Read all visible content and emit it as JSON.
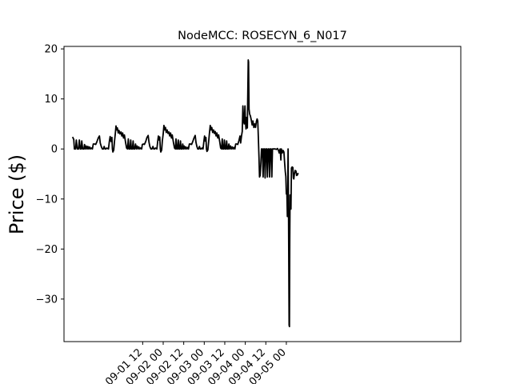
{
  "chart_data": {
    "type": "line",
    "title": "NodeMCC: ROSECYN_6_N017",
    "xlabel": "",
    "ylabel": "Price ($)",
    "xlim_hours": [
      -34,
      198
    ],
    "ylim": [
      -38.5,
      20.5
    ],
    "yticks": [
      20,
      10,
      0,
      -10,
      -20,
      -30
    ],
    "xticks": [
      {
        "hour": 12,
        "label": "09-01 12"
      },
      {
        "hour": 24,
        "label": "09-02 00"
      },
      {
        "hour": 36,
        "label": "09-02 12"
      },
      {
        "hour": 48,
        "label": "09-03 00"
      },
      {
        "hour": 60,
        "label": "09-03 12"
      },
      {
        "hour": 72,
        "label": "09-04 00"
      },
      {
        "hour": 84,
        "label": "09-04 12"
      },
      {
        "hour": 96,
        "label": "09-05 00"
      }
    ],
    "grid": false,
    "line_color": "#000000",
    "series": [
      {
        "name": "",
        "points": [
          [
            -29.0,
            2.4
          ],
          [
            -28.3,
            1.9
          ],
          [
            -27.9,
            0.0
          ],
          [
            -27.2,
            0.0
          ],
          [
            -26.8,
            1.8
          ],
          [
            -26.2,
            0.0
          ],
          [
            -25.5,
            0.0
          ],
          [
            -25.0,
            1.8
          ],
          [
            -24.5,
            0.0
          ],
          [
            -24.0,
            0.0
          ],
          [
            -23.6,
            1.6
          ],
          [
            -23.1,
            0.0
          ],
          [
            -22.4,
            0.0
          ],
          [
            -22.0,
            0.9
          ],
          [
            -21.5,
            0.0
          ],
          [
            -21.0,
            0.6
          ],
          [
            -20.5,
            0.0
          ],
          [
            -20.0,
            0.5
          ],
          [
            -19.5,
            0.0
          ],
          [
            -19.0,
            0.4
          ],
          [
            -18.5,
            0.0
          ],
          [
            -18.0,
            0.2
          ],
          [
            -17.4,
            0.0
          ],
          [
            -16.9,
            1.0
          ],
          [
            -16.0,
            1.0
          ],
          [
            -15.5,
            0.9
          ],
          [
            -14.8,
            1.4
          ],
          [
            -14.0,
            2.2
          ],
          [
            -13.3,
            2.6
          ],
          [
            -12.8,
            1.2
          ],
          [
            -12.2,
            0.5
          ],
          [
            -11.6,
            0.0
          ],
          [
            -11.0,
            0.0
          ],
          [
            -10.5,
            0.5
          ],
          [
            -10.0,
            0.0
          ],
          [
            -9.5,
            0.0
          ],
          [
            -9.0,
            0.2
          ],
          [
            -8.0,
            0.0
          ],
          [
            -7.5,
            1.5
          ],
          [
            -7.0,
            2.5
          ],
          [
            -6.5,
            1.5
          ],
          [
            -6.0,
            2.3
          ],
          [
            -5.7,
            0.0
          ],
          [
            -5.4,
            -0.6
          ],
          [
            -4.9,
            -0.2
          ],
          [
            -4.5,
            1.5
          ],
          [
            -4.0,
            3.0
          ],
          [
            -3.6,
            4.6
          ],
          [
            -3.1,
            3.8
          ],
          [
            -2.8,
            4.2
          ],
          [
            -2.3,
            3.2
          ],
          [
            -1.8,
            3.7
          ],
          [
            -1.3,
            3.0
          ],
          [
            -0.7,
            3.4
          ],
          [
            -0.2,
            2.6
          ],
          [
            0.3,
            3.2
          ],
          [
            0.8,
            2.2
          ],
          [
            1.3,
            2.8
          ],
          [
            2.0,
            1.3
          ],
          [
            2.6,
            0.2
          ],
          [
            3.1,
            0.0
          ],
          [
            3.6,
            2.0
          ],
          [
            4.0,
            0.0
          ],
          [
            4.6,
            0.0
          ],
          [
            5.0,
            1.8
          ],
          [
            5.4,
            0.0
          ],
          [
            6.0,
            0.0
          ],
          [
            6.4,
            1.6
          ],
          [
            6.8,
            0.0
          ],
          [
            7.3,
            0.0
          ],
          [
            7.8,
            1.0
          ],
          [
            8.3,
            0.0
          ],
          [
            8.8,
            0.6
          ],
          [
            9.3,
            0.0
          ],
          [
            9.8,
            0.4
          ],
          [
            10.3,
            0.0
          ],
          [
            10.8,
            0.2
          ],
          [
            11.4,
            0.0
          ],
          [
            11.8,
            0.9
          ],
          [
            12.5,
            1.0
          ],
          [
            13.0,
            0.9
          ],
          [
            13.8,
            1.5
          ],
          [
            14.5,
            2.3
          ],
          [
            15.2,
            2.7
          ],
          [
            15.7,
            1.3
          ],
          [
            16.2,
            0.5
          ],
          [
            16.8,
            0.0
          ],
          [
            17.4,
            0.0
          ],
          [
            18.0,
            0.5
          ],
          [
            18.5,
            0.0
          ],
          [
            19.0,
            0.0
          ],
          [
            19.5,
            0.2
          ],
          [
            20.3,
            0.0
          ],
          [
            20.8,
            1.6
          ],
          [
            21.2,
            2.6
          ],
          [
            21.6,
            1.8
          ],
          [
            22.0,
            2.4
          ],
          [
            22.3,
            0.0
          ],
          [
            22.6,
            -0.6
          ],
          [
            23.1,
            -0.2
          ],
          [
            23.5,
            1.6
          ],
          [
            24.0,
            3.0
          ],
          [
            24.4,
            4.7
          ],
          [
            24.9,
            3.8
          ],
          [
            25.3,
            4.3
          ],
          [
            25.8,
            3.3
          ],
          [
            26.3,
            3.8
          ],
          [
            26.8,
            3.1
          ],
          [
            27.3,
            3.4
          ],
          [
            27.8,
            2.6
          ],
          [
            28.3,
            3.2
          ],
          [
            28.8,
            2.2
          ],
          [
            29.3,
            2.8
          ],
          [
            30.0,
            1.3
          ],
          [
            30.6,
            0.2
          ],
          [
            31.1,
            0.0
          ],
          [
            31.5,
            2.0
          ],
          [
            31.9,
            0.0
          ],
          [
            32.4,
            0.0
          ],
          [
            32.8,
            1.8
          ],
          [
            33.2,
            0.0
          ],
          [
            33.7,
            0.0
          ],
          [
            34.1,
            1.6
          ],
          [
            34.5,
            0.0
          ],
          [
            35.0,
            0.0
          ],
          [
            35.4,
            1.0
          ],
          [
            35.9,
            0.0
          ],
          [
            36.3,
            0.6
          ],
          [
            36.8,
            0.0
          ],
          [
            37.3,
            0.4
          ],
          [
            37.8,
            0.0
          ],
          [
            38.3,
            0.3
          ],
          [
            38.8,
            0.0
          ],
          [
            39.3,
            1.0
          ],
          [
            40.0,
            1.0
          ],
          [
            40.6,
            0.9
          ],
          [
            41.3,
            1.5
          ],
          [
            42.0,
            2.2
          ],
          [
            42.7,
            2.7
          ],
          [
            43.2,
            1.3
          ],
          [
            43.7,
            0.5
          ],
          [
            44.2,
            0.0
          ],
          [
            44.7,
            0.0
          ],
          [
            45.2,
            0.5
          ],
          [
            45.7,
            0.0
          ],
          [
            46.2,
            0.0
          ],
          [
            46.7,
            0.2
          ],
          [
            47.3,
            0.0
          ],
          [
            47.8,
            1.6
          ],
          [
            48.2,
            2.6
          ],
          [
            48.6,
            1.6
          ],
          [
            49.0,
            2.3
          ],
          [
            49.3,
            0.0
          ],
          [
            49.6,
            -0.5
          ],
          [
            50.1,
            -0.2
          ],
          [
            50.6,
            1.6
          ],
          [
            51.0,
            3.0
          ],
          [
            51.5,
            4.7
          ],
          [
            51.9,
            3.8
          ],
          [
            52.4,
            4.3
          ],
          [
            52.9,
            3.3
          ],
          [
            53.4,
            3.8
          ],
          [
            53.9,
            3.1
          ],
          [
            54.4,
            3.5
          ],
          [
            54.9,
            2.6
          ],
          [
            55.4,
            3.2
          ],
          [
            55.9,
            2.2
          ],
          [
            56.4,
            2.8
          ],
          [
            57.1,
            1.3
          ],
          [
            57.6,
            0.2
          ],
          [
            58.1,
            0.0
          ],
          [
            58.5,
            2.0
          ],
          [
            58.9,
            0.0
          ],
          [
            59.4,
            0.0
          ],
          [
            59.8,
            1.8
          ],
          [
            60.2,
            0.0
          ],
          [
            60.7,
            0.0
          ],
          [
            61.1,
            1.6
          ],
          [
            61.5,
            0.0
          ],
          [
            62.0,
            0.0
          ],
          [
            62.4,
            1.0
          ],
          [
            62.9,
            0.0
          ],
          [
            63.4,
            0.6
          ],
          [
            63.9,
            0.0
          ],
          [
            64.4,
            0.4
          ],
          [
            64.9,
            0.0
          ],
          [
            65.4,
            0.3
          ],
          [
            65.9,
            0.0
          ],
          [
            66.4,
            1.0
          ],
          [
            67.1,
            1.0
          ],
          [
            67.6,
            0.9
          ],
          [
            68.3,
            1.7
          ],
          [
            68.9,
            2.6
          ],
          [
            69.3,
            1.2
          ],
          [
            69.8,
            2.6
          ],
          [
            70.2,
            3.5
          ],
          [
            70.6,
            8.6
          ],
          [
            71.0,
            5.6
          ],
          [
            71.4,
            5.0
          ],
          [
            71.8,
            8.6
          ],
          [
            72.1,
            5.5
          ],
          [
            72.4,
            4.0
          ],
          [
            72.6,
            6.3
          ],
          [
            72.9,
            4.3
          ],
          [
            73.2,
            4.2
          ],
          [
            73.4,
            9.5
          ],
          [
            73.7,
            17.8
          ],
          [
            73.9,
            17.4
          ],
          [
            74.2,
            8.0
          ],
          [
            74.5,
            7.0
          ],
          [
            75.0,
            6.6
          ],
          [
            75.5,
            5.8
          ],
          [
            76.0,
            4.8
          ],
          [
            76.5,
            5.6
          ],
          [
            77.0,
            4.3
          ],
          [
            77.5,
            5.0
          ],
          [
            78.0,
            4.3
          ],
          [
            78.5,
            5.5
          ],
          [
            78.9,
            6.0
          ],
          [
            79.3,
            5.6
          ],
          [
            79.6,
            2.5
          ],
          [
            80.0,
            -1.5
          ],
          [
            80.3,
            -5.6
          ],
          [
            80.7,
            -5.3
          ],
          [
            81.1,
            -2.8
          ],
          [
            81.5,
            0.0
          ],
          [
            82.0,
            0.0
          ],
          [
            82.4,
            -5.6
          ],
          [
            82.8,
            0.0
          ],
          [
            83.2,
            0.0
          ],
          [
            83.6,
            -5.8
          ],
          [
            84.0,
            0.0
          ],
          [
            84.5,
            0.0
          ],
          [
            84.9,
            -5.6
          ],
          [
            85.3,
            0.0
          ],
          [
            85.8,
            0.0
          ],
          [
            86.2,
            -5.6
          ],
          [
            86.6,
            0.0
          ],
          [
            87.1,
            0.0
          ],
          [
            87.5,
            -5.6
          ],
          [
            87.9,
            0.0
          ],
          [
            88.3,
            0.0
          ],
          [
            89.5,
            0.0
          ],
          [
            90.2,
            -0.1
          ],
          [
            90.8,
            0.1
          ],
          [
            91.3,
            -0.2
          ],
          [
            91.8,
            -0.8
          ],
          [
            92.1,
            -0.4
          ],
          [
            92.4,
            0.0
          ],
          [
            92.8,
            -2.2
          ],
          [
            93.1,
            0.0
          ],
          [
            93.6,
            -0.8
          ],
          [
            94.1,
            -0.3
          ],
          [
            94.6,
            -0.6
          ],
          [
            95.0,
            -2.8
          ],
          [
            95.4,
            -4.5
          ],
          [
            95.7,
            -5.5
          ],
          [
            96.0,
            -9.0
          ],
          [
            96.3,
            -8.8
          ],
          [
            96.6,
            -13.5
          ],
          [
            96.8,
            -9.5
          ],
          [
            97.0,
            0.0
          ],
          [
            97.2,
            -8.0
          ],
          [
            97.4,
            -20.0
          ],
          [
            97.6,
            -35.2
          ],
          [
            97.8,
            -35.5
          ],
          [
            98.0,
            -18.0
          ],
          [
            98.2,
            -9.2
          ],
          [
            98.5,
            -10.0
          ],
          [
            98.7,
            -12.0
          ],
          [
            99.0,
            -3.8
          ],
          [
            99.4,
            -3.6
          ],
          [
            99.8,
            -3.7
          ],
          [
            100.1,
            -5.8
          ],
          [
            100.4,
            -6.0
          ],
          [
            100.7,
            -5.0
          ],
          [
            101.2,
            -4.3
          ],
          [
            101.6,
            -4.4
          ],
          [
            102.0,
            -5.3
          ],
          [
            102.5,
            -5.2
          ],
          [
            102.9,
            -4.8
          ]
        ]
      }
    ]
  }
}
